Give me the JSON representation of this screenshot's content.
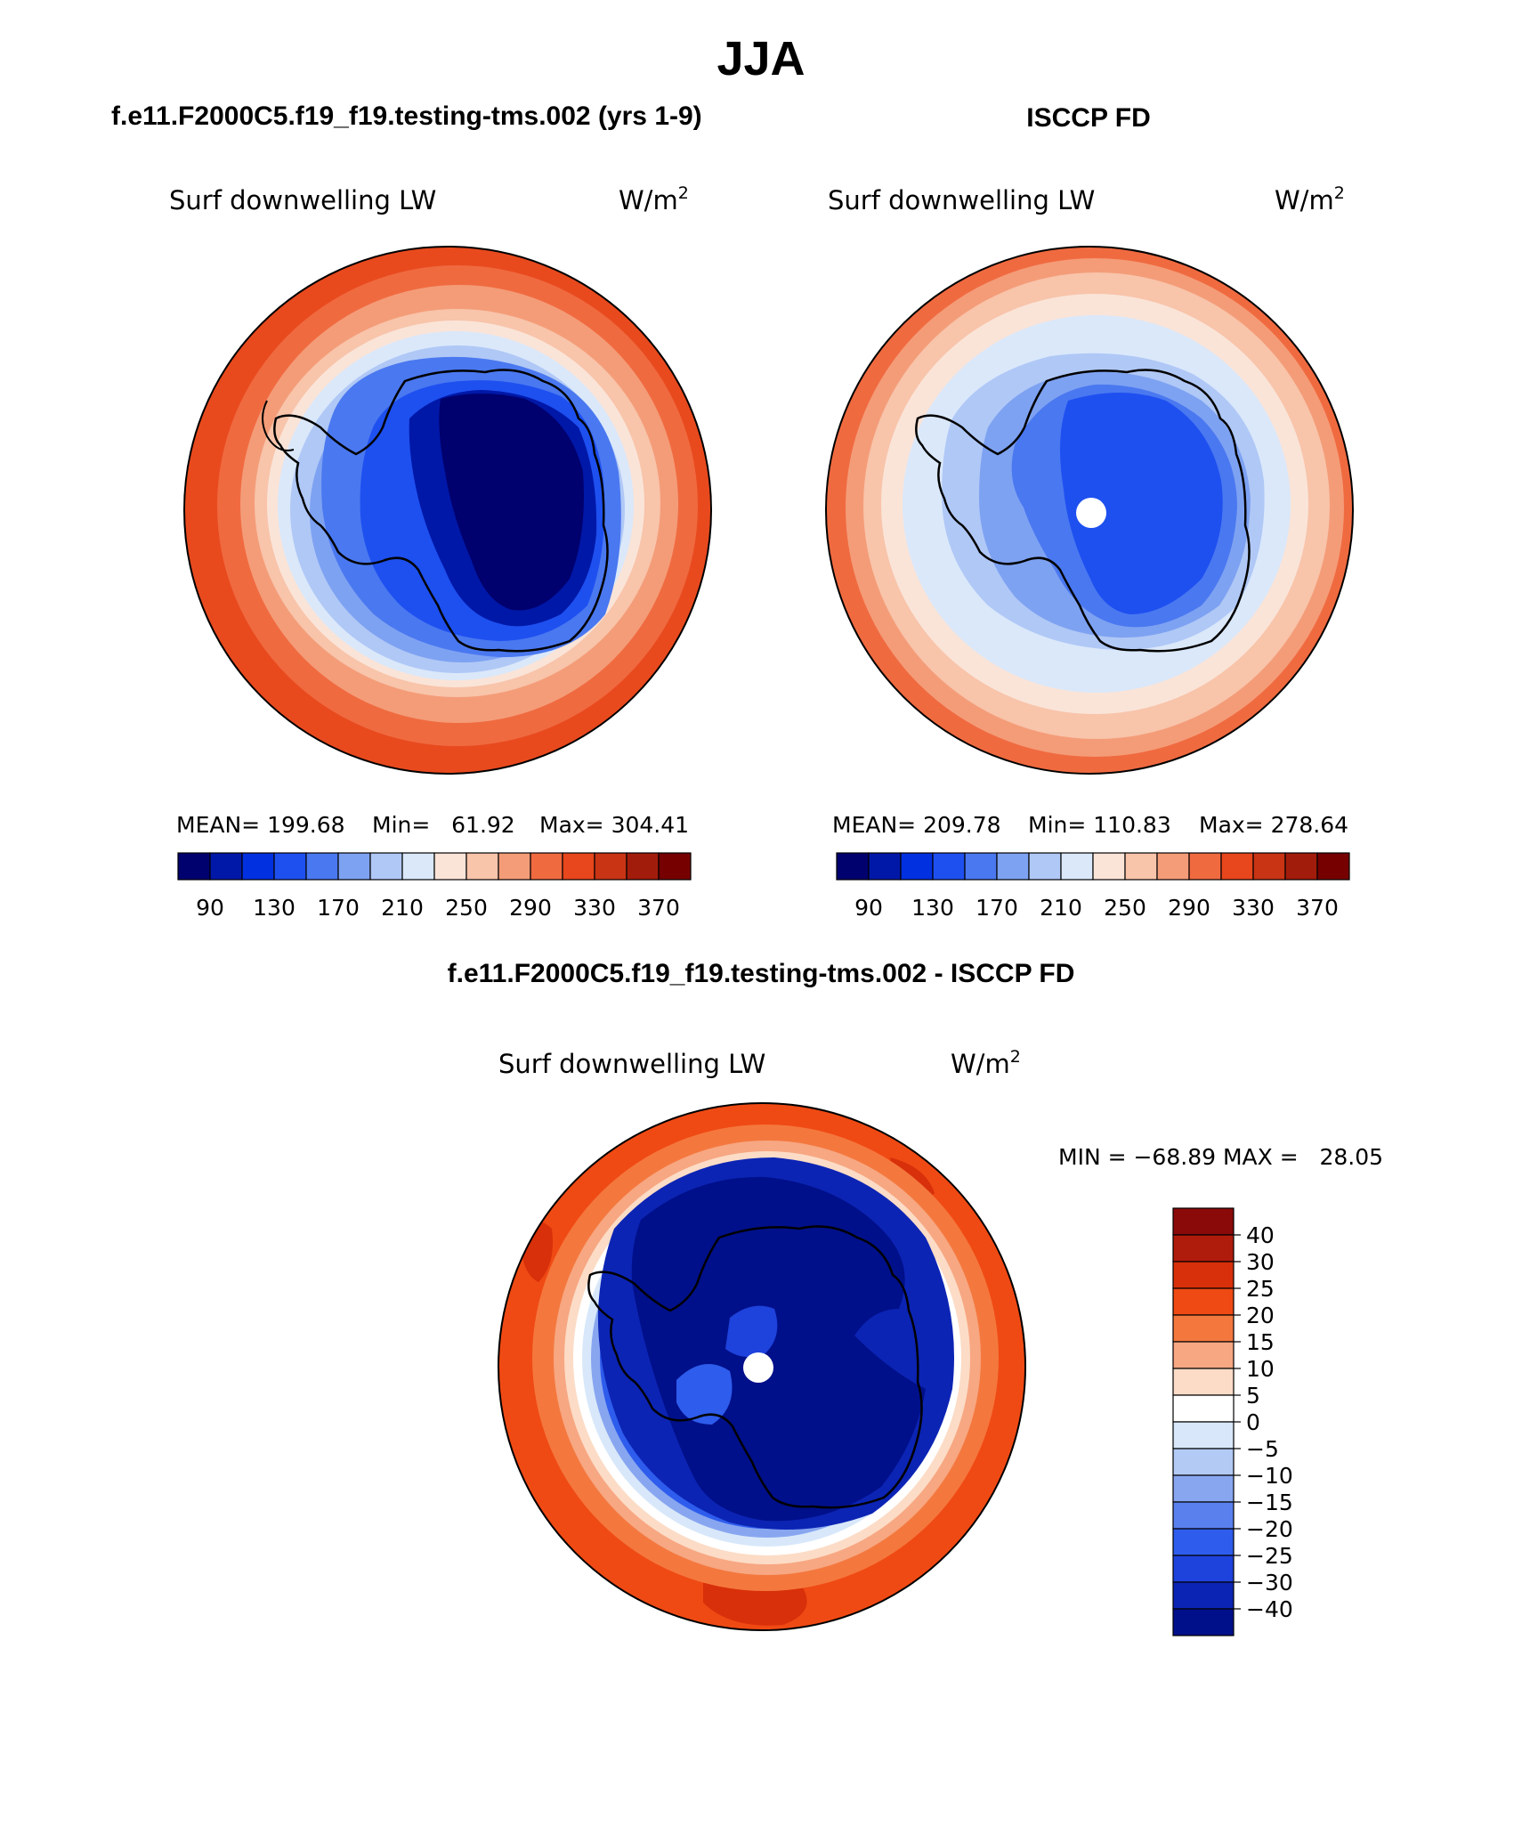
{
  "figure": {
    "season": "JJA",
    "panels": {
      "model": {
        "header": "f.e11.F2000C5.f19_f19.testing-tms.002 (yrs 1-9)",
        "variable": "Surf downwelling LW",
        "units_base": "W/m",
        "units_exp": "2",
        "stats": {
          "mean": "MEAN= 199.68",
          "min": "Min=   61.92",
          "max": "Max= 304.41"
        }
      },
      "obs": {
        "header": "ISCCP FD",
        "variable": "Surf downwelling LW",
        "units_base": "W/m",
        "units_exp": "2",
        "stats": {
          "mean": "MEAN= 209.78",
          "min": "Min= 110.83",
          "max": "Max= 278.64"
        }
      },
      "diff": {
        "header": "f.e11.F2000C5.f19_f19.testing-tms.002 - ISCCP FD",
        "variable": "Surf downwelling LW",
        "units_base": "W/m",
        "units_exp": "2",
        "minmax": "MIN = −68.89 MAX =   28.05"
      }
    },
    "abs_colorbar": {
      "colors": [
        "#00006e",
        "#0018a8",
        "#0030e0",
        "#1e50f0",
        "#4a78f0",
        "#7ea2f2",
        "#b0c8f6",
        "#dae8fa",
        "#fae4d8",
        "#f8c4aa",
        "#f49c78",
        "#f06a40",
        "#e8461c",
        "#c83414",
        "#a21c0c",
        "#760000"
      ],
      "labels": [
        "90",
        "130",
        "170",
        "210",
        "250",
        "290",
        "330",
        "370"
      ]
    },
    "diff_colorbar": {
      "colors": [
        "#8a0a0a",
        "#b01c0c",
        "#d8300a",
        "#f04a14",
        "#f4783e",
        "#f7a782",
        "#fcdcc6",
        "#ffffff",
        "#d8e8fa",
        "#b2caf4",
        "#88a6f0",
        "#5a80ee",
        "#2e5cec",
        "#1e42dc",
        "#0c24b4",
        "#00108a"
      ],
      "labels": [
        "40",
        "30",
        "25",
        "20",
        "15",
        "10",
        "5",
        "0",
        "−5",
        "−10",
        "−15",
        "−20",
        "−25",
        "−30",
        "−40"
      ]
    }
  }
}
